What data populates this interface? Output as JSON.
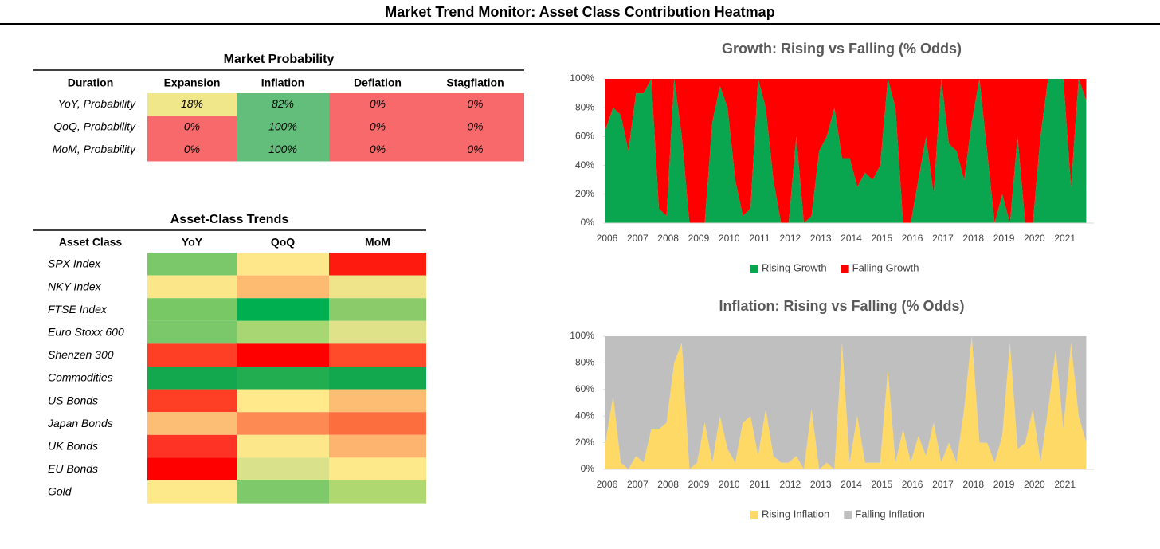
{
  "header": {
    "title": "Market Trend Monitor: Asset Class Contribution Heatmap"
  },
  "market_probability": {
    "title": "Market Probability",
    "columns": [
      "Duration",
      "Expansion",
      "Inflation",
      "Deflation",
      "Stagflation"
    ],
    "rows": [
      {
        "label": "YoY, Probability",
        "cells": [
          "18%",
          "82%",
          "0%",
          "0%"
        ],
        "colors": [
          "#f0e68a",
          "#63be7b",
          "#f8696b",
          "#f8696b"
        ]
      },
      {
        "label": "QoQ, Probability",
        "cells": [
          "0%",
          "100%",
          "0%",
          "0%"
        ],
        "colors": [
          "#f8696b",
          "#63be7b",
          "#f8696b",
          "#f8696b"
        ]
      },
      {
        "label": "MoM, Probability",
        "cells": [
          "0%",
          "100%",
          "0%",
          "0%"
        ],
        "colors": [
          "#f8696b",
          "#63be7b",
          "#f8696b",
          "#f8696b"
        ]
      }
    ]
  },
  "asset_trends": {
    "title": "Asset-Class Trends",
    "columns": [
      "Asset Class",
      "YoY",
      "QoQ",
      "MoM"
    ],
    "rows": [
      {
        "label": "SPX Index",
        "colors": [
          "#7bc86a",
          "#fee78a",
          "#ff1a10"
        ]
      },
      {
        "label": "NKY Index",
        "colors": [
          "#fbe78a",
          "#fdbb72",
          "#f0e48a"
        ]
      },
      {
        "label": "FTSE Index",
        "colors": [
          "#78c865",
          "#00b050",
          "#8ccb6a"
        ]
      },
      {
        "label": "Euro Stoxx 600",
        "colors": [
          "#7bc86a",
          "#a8d672",
          "#e0e28a"
        ]
      },
      {
        "label": "Shenzen 300",
        "colors": [
          "#ff3f25",
          "#ff0000",
          "#ff4b2a"
        ]
      },
      {
        "label": "Commodities",
        "colors": [
          "#14a84e",
          "#22ad50",
          "#12a84e"
        ]
      },
      {
        "label": "US Bonds",
        "colors": [
          "#ff3f25",
          "#ffe98a",
          "#fdbe74"
        ]
      },
      {
        "label": "Japan Bonds",
        "colors": [
          "#fcbd74",
          "#fc8a52",
          "#fd6e3f"
        ]
      },
      {
        "label": "UK Bonds",
        "colors": [
          "#ff3325",
          "#fce88a",
          "#fcb46f"
        ]
      },
      {
        "label": "EU Bonds",
        "colors": [
          "#ff0000",
          "#d9e28a",
          "#fde88a"
        ]
      },
      {
        "label": "Gold",
        "colors": [
          "#fde88a",
          "#7ec96a",
          "#b0d870"
        ]
      }
    ]
  },
  "chart_data": [
    {
      "type": "stacked_area",
      "title": "Growth: Rising vs Falling (% Odds)",
      "categories": [
        "2006",
        null,
        null,
        null,
        "2007",
        null,
        null,
        null,
        "2008",
        null,
        null,
        null,
        "2009",
        null,
        null,
        null,
        "2010",
        null,
        null,
        null,
        "2011",
        null,
        null,
        null,
        "2012",
        null,
        null,
        null,
        "2013",
        null,
        null,
        null,
        "2014",
        null,
        null,
        null,
        "2015",
        null,
        null,
        null,
        "2016",
        null,
        null,
        null,
        "2017",
        null,
        null,
        null,
        "2018",
        null,
        null,
        null,
        "2019",
        null,
        null,
        null,
        "2020",
        null,
        null,
        null,
        "2021",
        null,
        null,
        null
      ],
      "series": [
        {
          "name": "Rising Growth",
          "color": "#0aa64f",
          "values": [
            65,
            80,
            75,
            50,
            90,
            90,
            100,
            10,
            5,
            100,
            60,
            0,
            0,
            0,
            70,
            95,
            80,
            30,
            5,
            10,
            100,
            80,
            30,
            0,
            0,
            60,
            0,
            5,
            50,
            60,
            80,
            45,
            45,
            25,
            35,
            30,
            40,
            100,
            80,
            0,
            0,
            30,
            60,
            20,
            100,
            55,
            50,
            30,
            70,
            100,
            50,
            0,
            20,
            0,
            60,
            0,
            0,
            60,
            100,
            100,
            100,
            25,
            100,
            85
          ]
        },
        {
          "name": "Falling Growth",
          "color": "#ff0000",
          "values": [
            35,
            20,
            25,
            50,
            10,
            10,
            0,
            90,
            95,
            0,
            40,
            100,
            100,
            100,
            30,
            5,
            20,
            70,
            95,
            90,
            0,
            20,
            70,
            100,
            100,
            40,
            100,
            95,
            50,
            40,
            20,
            55,
            55,
            75,
            65,
            70,
            60,
            0,
            20,
            100,
            100,
            70,
            40,
            80,
            0,
            45,
            50,
            70,
            30,
            0,
            50,
            100,
            80,
            100,
            40,
            100,
            100,
            40,
            0,
            0,
            0,
            75,
            0,
            15
          ]
        }
      ],
      "ylim": [
        0,
        100
      ],
      "yticks": [
        {
          "value": 0,
          "label": "0%"
        },
        {
          "value": 20,
          "label": "20%"
        },
        {
          "value": 40,
          "label": "40%"
        },
        {
          "value": 60,
          "label": "60%"
        },
        {
          "value": 80,
          "label": "80%"
        },
        {
          "value": 100,
          "label": "100%"
        }
      ],
      "legend": "bottom"
    },
    {
      "type": "stacked_area",
      "title": "Inflation: Rising vs Falling  (% Odds)",
      "categories": [
        "2006",
        null,
        null,
        null,
        "2007",
        null,
        null,
        null,
        "2008",
        null,
        null,
        null,
        "2009",
        null,
        null,
        null,
        "2010",
        null,
        null,
        null,
        "2011",
        null,
        null,
        null,
        "2012",
        null,
        null,
        null,
        "2013",
        null,
        null,
        null,
        "2014",
        null,
        null,
        null,
        "2015",
        null,
        null,
        null,
        "2016",
        null,
        null,
        null,
        "2017",
        null,
        null,
        null,
        "2018",
        null,
        null,
        null,
        "2019",
        null,
        null,
        null,
        "2020",
        null,
        null,
        null,
        "2021",
        null,
        null,
        null
      ],
      "series": [
        {
          "name": "Rising Inflation",
          "color": "#ffd966",
          "values": [
            20,
            55,
            5,
            0,
            10,
            5,
            30,
            30,
            35,
            80,
            95,
            0,
            5,
            35,
            5,
            40,
            15,
            5,
            35,
            40,
            10,
            45,
            10,
            5,
            5,
            10,
            0,
            45,
            0,
            5,
            0,
            95,
            5,
            40,
            5,
            5,
            5,
            75,
            5,
            30,
            5,
            25,
            10,
            35,
            5,
            20,
            5,
            45,
            100,
            20,
            20,
            5,
            25,
            95,
            15,
            20,
            45,
            5,
            45,
            90,
            30,
            95,
            40,
            20
          ]
        },
        {
          "name": "Falling Inflation",
          "color": "#bfbfbf",
          "values": [
            80,
            45,
            95,
            100,
            90,
            95,
            70,
            70,
            65,
            20,
            5,
            100,
            95,
            65,
            95,
            60,
            85,
            95,
            65,
            60,
            90,
            55,
            90,
            95,
            95,
            90,
            100,
            55,
            100,
            95,
            100,
            5,
            95,
            60,
            95,
            95,
            95,
            25,
            95,
            70,
            95,
            75,
            90,
            65,
            95,
            80,
            95,
            55,
            0,
            80,
            80,
            95,
            75,
            5,
            85,
            80,
            55,
            95,
            55,
            10,
            70,
            5,
            60,
            80
          ]
        }
      ],
      "ylim": [
        0,
        100
      ],
      "yticks": [
        {
          "value": 0,
          "label": "0%"
        },
        {
          "value": 20,
          "label": "20%"
        },
        {
          "value": 40,
          "label": "40%"
        },
        {
          "value": 60,
          "label": "60%"
        },
        {
          "value": 80,
          "label": "80%"
        },
        {
          "value": 100,
          "label": "100%"
        }
      ],
      "legend": "bottom"
    }
  ]
}
